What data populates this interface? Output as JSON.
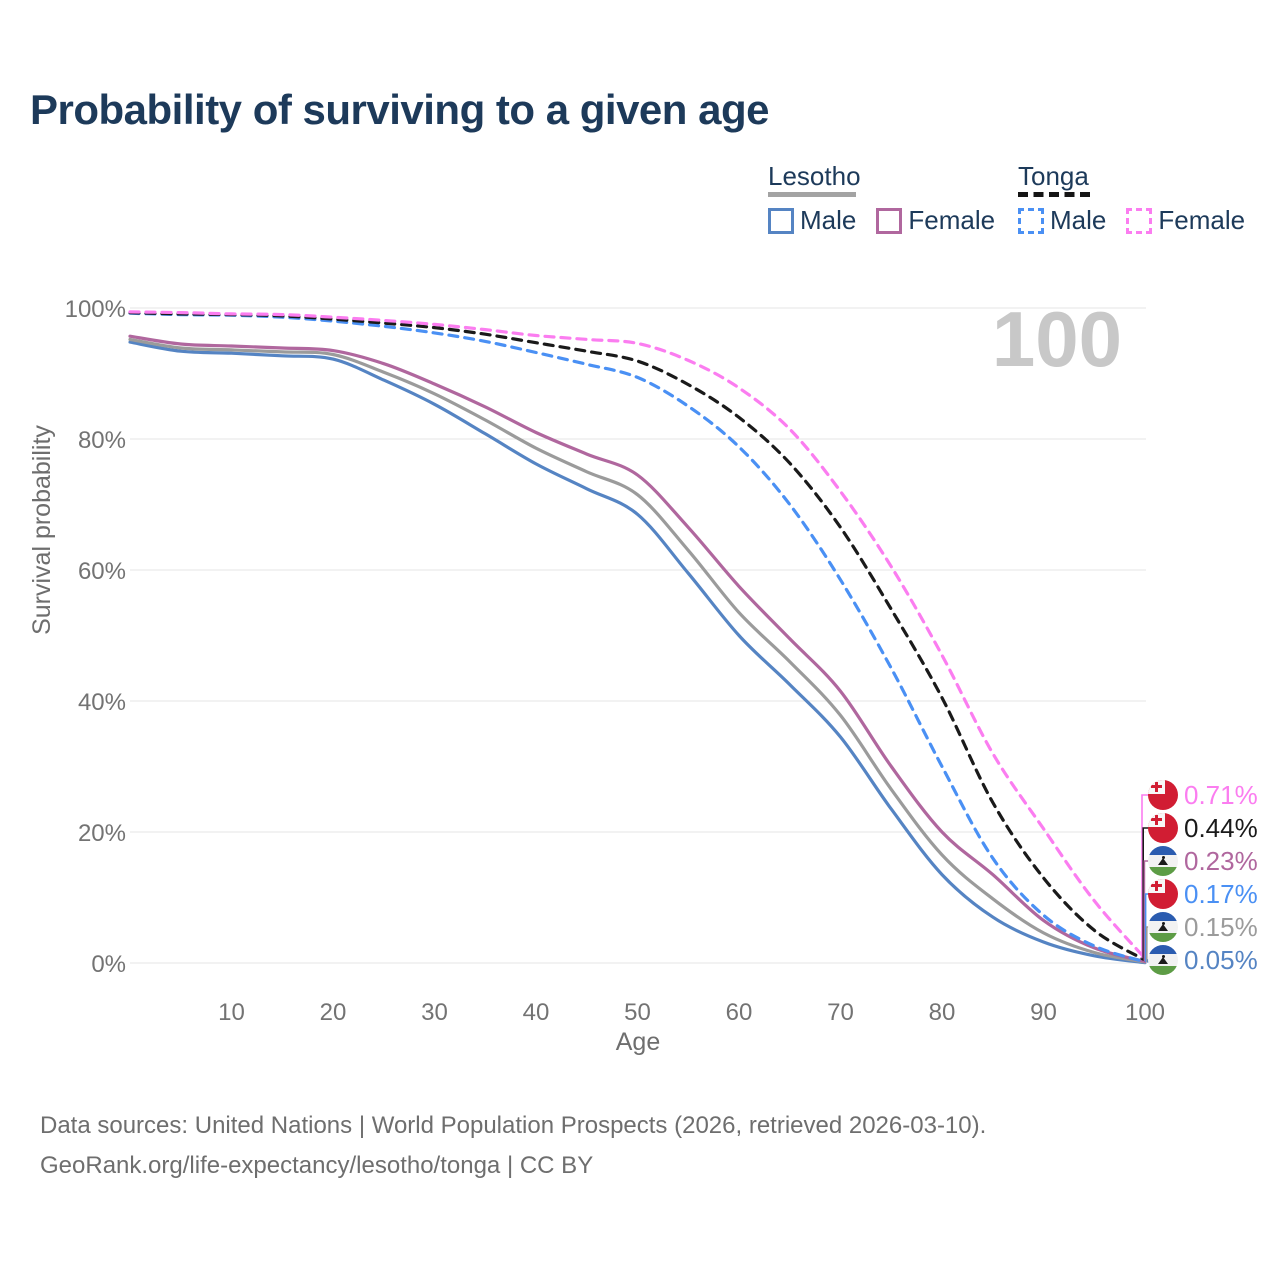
{
  "page": {
    "title": "Probability of surviving to a given age",
    "footer_line1": "Data sources: United Nations | World Population Prospects (2026, retrieved 2026-03-10).",
    "footer_line2": "GeoRank.org/life-expectancy/lesotho/tonga | CC BY"
  },
  "legend": {
    "groups": [
      {
        "country": "Lesotho",
        "line_style": "solid",
        "underline_color": "#a3a3a3",
        "items": [
          {
            "label": "Male",
            "color": "#5584c3",
            "dashed": false
          },
          {
            "label": "Female",
            "color": "#b0679e",
            "dashed": false
          }
        ]
      },
      {
        "country": "Tonga",
        "line_style": "dashed",
        "underline_color": "#151515",
        "items": [
          {
            "label": "Male",
            "color": "#4a90f4",
            "dashed": true
          },
          {
            "label": "Female",
            "color": "#fb7df0",
            "dashed": true
          }
        ]
      }
    ]
  },
  "chart_data": {
    "type": "line",
    "title": "Probability of surviving to a given age",
    "xlabel": "Age",
    "ylabel": "Survival probability",
    "age_indicator": "100",
    "xlim": [
      0,
      100
    ],
    "ylim": [
      0,
      100
    ],
    "x_ticks": [
      10,
      20,
      30,
      40,
      50,
      60,
      70,
      80,
      90,
      100
    ],
    "y_ticks": [
      {
        "value": 0,
        "label": "0%"
      },
      {
        "value": 20,
        "label": "20%"
      },
      {
        "value": 40,
        "label": "40%"
      },
      {
        "value": 60,
        "label": "60%"
      },
      {
        "value": 80,
        "label": "80%"
      },
      {
        "value": 100,
        "label": "100%"
      }
    ],
    "grid": "horizontal",
    "legend_position": "top-right",
    "ages": [
      0,
      5,
      10,
      15,
      20,
      25,
      30,
      35,
      40,
      45,
      50,
      55,
      60,
      65,
      70,
      75,
      80,
      85,
      90,
      95,
      100
    ],
    "series": [
      {
        "id": "lesotho_male",
        "name": "Lesotho Male",
        "country": "lesotho",
        "sex": "Male",
        "color": "#5584c3",
        "dashed": false,
        "end_label": "0.05%",
        "values": [
          94.8,
          93.4,
          93.1,
          92.7,
          92.2,
          89.0,
          85.3,
          80.8,
          76.2,
          72.4,
          68.5,
          59.5,
          50.0,
          42.5,
          34.5,
          23.5,
          13.5,
          7.0,
          3.2,
          1.1,
          0.05
        ]
      },
      {
        "id": "lesotho_all",
        "name": "Lesotho Both sexes",
        "country": "lesotho",
        "sex": "Both",
        "color": "#9b9b9b",
        "dashed": false,
        "end_label": "0.15%",
        "values": [
          95.2,
          93.9,
          93.6,
          93.3,
          92.9,
          90.2,
          86.9,
          82.9,
          78.6,
          75.0,
          71.5,
          63.0,
          53.5,
          46.0,
          37.8,
          26.5,
          16.5,
          9.8,
          4.6,
          1.6,
          0.15
        ]
      },
      {
        "id": "lesotho_female",
        "name": "Lesotho Female",
        "country": "lesotho",
        "sex": "Female",
        "color": "#b0679e",
        "dashed": false,
        "end_label": "0.23%",
        "values": [
          95.7,
          94.5,
          94.2,
          93.9,
          93.5,
          91.5,
          88.4,
          84.9,
          81.0,
          77.7,
          74.5,
          66.5,
          57.5,
          49.5,
          41.5,
          30.0,
          20.0,
          13.5,
          6.5,
          2.3,
          0.23
        ]
      },
      {
        "id": "tonga_male",
        "name": "Tonga Male",
        "country": "tonga",
        "sex": "Male",
        "color": "#4a90f4",
        "dashed": true,
        "end_label": "0.17%",
        "values": [
          99.2,
          99.0,
          98.9,
          98.6,
          98.0,
          97.2,
          96.2,
          94.9,
          93.2,
          91.4,
          89.4,
          85.0,
          78.8,
          70.0,
          58.5,
          45.0,
          30.0,
          16.0,
          7.3,
          2.6,
          0.17
        ]
      },
      {
        "id": "tonga_all",
        "name": "Tonga Both sexes",
        "country": "tonga",
        "sex": "Both",
        "color": "#1a1a1a",
        "dashed": true,
        "end_label": "0.44%",
        "values": [
          99.3,
          99.1,
          99.0,
          98.8,
          98.3,
          97.7,
          97.0,
          96.0,
          94.7,
          93.4,
          91.9,
          88.3,
          83.3,
          76.3,
          66.5,
          54.0,
          40.5,
          24.5,
          13.0,
          5.0,
          0.44
        ]
      },
      {
        "id": "tonga_female",
        "name": "Tonga Female",
        "country": "tonga",
        "sex": "Female",
        "color": "#fb7df0",
        "dashed": true,
        "end_label": "0.71%",
        "values": [
          99.4,
          99.3,
          99.1,
          99.0,
          98.6,
          98.1,
          97.5,
          96.7,
          95.8,
          95.2,
          94.6,
          92.0,
          87.8,
          81.5,
          72.0,
          60.5,
          47.0,
          32.0,
          20.5,
          9.5,
          0.71
        ]
      }
    ],
    "end_labels": [
      {
        "value": "0.71%",
        "country": "tonga",
        "color": "#fb7df0",
        "series": "tonga_female"
      },
      {
        "value": "0.44%",
        "country": "tonga",
        "color": "#1a1a1a",
        "series": "tonga_all"
      },
      {
        "value": "0.23%",
        "country": "lesotho",
        "color": "#b0679e",
        "series": "lesotho_female"
      },
      {
        "value": "0.17%",
        "country": "tonga",
        "color": "#4a90f4",
        "series": "tonga_male"
      },
      {
        "value": "0.15%",
        "country": "lesotho",
        "color": "#9b9b9b",
        "series": "lesotho_all"
      },
      {
        "value": "0.05%",
        "country": "lesotho",
        "color": "#5584c3",
        "series": "lesotho_male"
      }
    ]
  }
}
